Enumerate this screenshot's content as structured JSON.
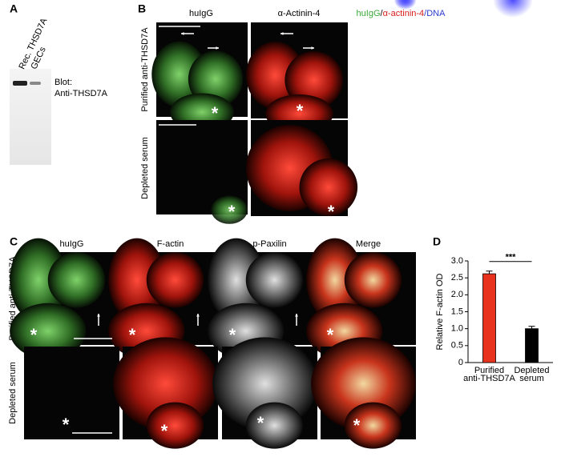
{
  "panel_a": {
    "label": "A",
    "lanes": [
      "Rec. THSD7A",
      "GECs"
    ],
    "blot_label": [
      "Blot:",
      "Anti-THSD7A"
    ]
  },
  "panel_b": {
    "label": "B",
    "columns": [
      "huIgG",
      "α-Actinin-4"
    ],
    "merge_title": [
      {
        "text": "huIgG",
        "color": "#3aa83a"
      },
      {
        "text": "/",
        "color": "#000000"
      },
      {
        "text": "α-actinin-4",
        "color": "#d81c1c"
      },
      {
        "text": "/DNA",
        "color": "#2a3ccc"
      }
    ],
    "rows": [
      "Purified anti-THSD7A",
      "Depleted serum"
    ]
  },
  "panel_c": {
    "label": "C",
    "columns": [
      "huIgG",
      "F-actin",
      "p-Paxilin",
      "Merge"
    ],
    "rows": [
      "Purified anti-THSD7A",
      "Depleted serum"
    ]
  },
  "marker": "*",
  "chart_data": {
    "type": "bar",
    "label": "D",
    "ylabel": "Relative F-actin OD",
    "categories": [
      "Purified anti-THSD7A",
      "Depleted serum"
    ],
    "values": [
      2.62,
      1.0
    ],
    "errors": [
      0.08,
      0.07
    ],
    "colors": [
      "#e8321e",
      "#000000"
    ],
    "ylim": [
      0,
      3
    ],
    "yticks": [
      0,
      0.5,
      {
        "value": 1,
        "label": "1.0"
      },
      1.5,
      {
        "value": 2,
        "label": "2.0"
      },
      2.5,
      {
        "value": 3,
        "label": "3.0"
      }
    ],
    "significance": "***"
  }
}
